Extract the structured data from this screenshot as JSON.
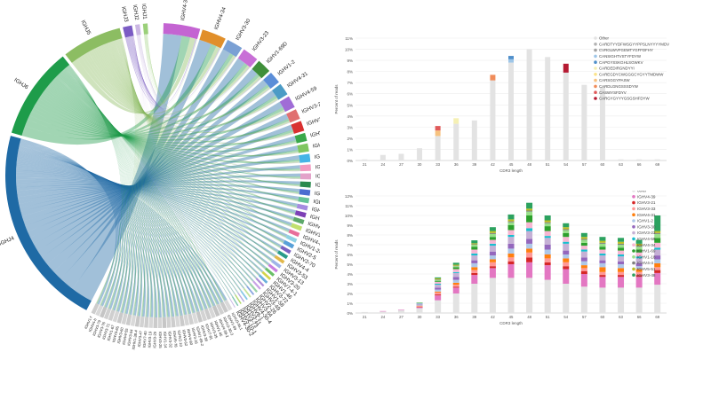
{
  "chord": {
    "j_genes": [
      {
        "name": "IGHJ4",
        "color": "#1f6aa5",
        "weight": 44
      },
      {
        "name": "IGHJ6",
        "color": "#1e9c4a",
        "weight": 20
      },
      {
        "name": "IGHJ5",
        "color": "#8cbd62",
        "weight": 13
      },
      {
        "name": "IGHJ3",
        "color": "#7b5cc4",
        "weight": 2
      },
      {
        "name": "IGHJ2",
        "color": "#cbb7e3",
        "weight": 1
      },
      {
        "name": "IGHJ1",
        "color": "#9bd07a",
        "weight": 1
      }
    ],
    "v_genes_major": [
      {
        "name": "IGHV4-39",
        "color": "#c464d2",
        "weight": 9
      },
      {
        "name": "IGHV4-34",
        "color": "#e18f2a",
        "weight": 6
      },
      {
        "name": "IGHV3-30",
        "color": "#7aa0d4",
        "weight": 4
      },
      {
        "name": "IGHV3-23",
        "color": "#c86fd6",
        "weight": 4
      },
      {
        "name": "IGHV1-69D",
        "color": "#3f8f3a",
        "weight": 3.5
      },
      {
        "name": "IGHV1-2",
        "color": "#5b8ed8",
        "weight": 3
      },
      {
        "name": "IGHV4-31",
        "color": "#4b9bc6",
        "weight": 3
      },
      {
        "name": "IGHV4-59",
        "color": "#a06cd6",
        "weight": 3
      },
      {
        "name": "IGHV3-21",
        "color": "#e07070",
        "weight": 2.5
      },
      {
        "name": "IGHV3-33",
        "color": "#d93030",
        "weight": 2.5
      },
      {
        "name": "IGHV3-48",
        "color": "#3aa84a",
        "weight": 2
      },
      {
        "name": "IGHV1-18",
        "color": "#7fc660",
        "weight": 2
      },
      {
        "name": "IGHV5-51",
        "color": "#45b4e6",
        "weight": 2
      },
      {
        "name": "IGHV3-7",
        "color": "#f29bc1",
        "weight": 1.6
      },
      {
        "name": "IGHV4-28",
        "color": "#e3a2c9",
        "weight": 1.5
      },
      {
        "name": "IGHV1-3",
        "color": "#2b8a4e",
        "weight": 1.4
      },
      {
        "name": "IGHV3-74",
        "color": "#4a6cd0",
        "weight": 1.4
      },
      {
        "name": "IGHV3-9",
        "color": "#66c299",
        "weight": 1.3
      },
      {
        "name": "IGHV3-15",
        "color": "#a58be0",
        "weight": 1.2
      },
      {
        "name": "IGHV1-8",
        "color": "#7d40b6",
        "weight": 1.2
      },
      {
        "name": "IGHV3-66",
        "color": "#5da86a",
        "weight": 1.1
      },
      {
        "name": "IGHV3-43",
        "color": "#c2e06e",
        "weight": 1.1
      },
      {
        "name": "IGHV4-61",
        "color": "#e86f9a",
        "weight": 1
      },
      {
        "name": "IGHV1-24",
        "color": "#8fd1e3",
        "weight": 1
      },
      {
        "name": "IGHV2-5",
        "color": "#58a0d8",
        "weight": 1
      },
      {
        "name": "IGHV2-70",
        "color": "#7b62c2",
        "weight": 0.9
      },
      {
        "name": "IGHV4-4",
        "color": "#2a9c8a",
        "weight": 0.9
      },
      {
        "name": "IGHV3-53",
        "color": "#e2b84b",
        "weight": 0.8
      },
      {
        "name": "IGHV3-13",
        "color": "#9fb4e8",
        "weight": 0.8
      },
      {
        "name": "IGHV3-20",
        "color": "#c97ee0",
        "weight": 0.7
      },
      {
        "name": "IGHV7-4-1",
        "color": "#6abf67",
        "weight": 0.7
      },
      {
        "name": "IGHV1-46",
        "color": "#d4d44a",
        "weight": 0.6
      },
      {
        "name": "IGHV3-72",
        "color": "#6ab0dd",
        "weight": 0.6
      },
      {
        "name": "IGHV1-58",
        "color": "#b08fd9",
        "weight": 0.5
      },
      {
        "name": "IGHV3-49",
        "color": "#c9a3e6",
        "weight": 0.5
      },
      {
        "name": "IGHV2-26",
        "color": "#9ad3a8",
        "weight": 0.5
      },
      {
        "name": "IGHV3-64",
        "color": "#8aa6e0",
        "weight": 0.4
      },
      {
        "name": "IGHV4-30-4",
        "color": "#c5e39a",
        "weight": 0.4
      },
      {
        "name": "IGHV6-1",
        "color": "#86c7e6",
        "weight": 0.4
      },
      {
        "name": "IGHV3-11",
        "color": "#b7a6e0",
        "weight": 0.3
      },
      {
        "name": "IGHV3-73",
        "color": "#b3d96c",
        "weight": 0.3
      },
      {
        "name": "IGHV5-10-1",
        "color": "#7ec4b0",
        "weight": 0.3
      },
      {
        "name": "IGHV4-30-2",
        "color": "#c6b4e4",
        "weight": 0.2
      }
    ],
    "v_genes_minor": [
      {
        "name": "IGHV3-NL1",
        "color": "#d9d9d9",
        "weight": 0.15
      },
      {
        "name": "IGHV1-69",
        "color": "#c9c9c9",
        "weight": 0.15
      },
      {
        "name": "IGHV3-30-3",
        "color": "#d0d0d0",
        "weight": 0.15
      },
      {
        "name": "IGHV4-38-2",
        "color": "#c4c4c4",
        "weight": 0.15
      },
      {
        "name": "IGHV1-45",
        "color": "#d6d6d6",
        "weight": 0.15
      },
      {
        "name": "IGHV3-35",
        "color": "#cccccc",
        "weight": 0.15
      },
      {
        "name": "IGHV7-81",
        "color": "#d3d3d3",
        "weight": 0.15
      },
      {
        "name": "IGHV3-38",
        "color": "#c7c7c7",
        "weight": 0.15
      },
      {
        "name": "IGHV1-69-2",
        "color": "#dadada",
        "weight": 0.15
      },
      {
        "name": "IGHV3-16",
        "color": "#cfcfcf",
        "weight": 0.15
      },
      {
        "name": "IGHV4-80",
        "color": "#d5d5d5",
        "weight": 0.15
      },
      {
        "name": "IGHV3-62",
        "color": "#cacaca",
        "weight": 0.15
      },
      {
        "name": "IGHV2-10",
        "color": "#d8d8d8",
        "weight": 0.15
      },
      {
        "name": "IGHV5-78",
        "color": "#cdcdcd",
        "weight": 0.15
      },
      {
        "name": "IGHV3-32",
        "color": "#d1d1d1",
        "weight": 0.15
      },
      {
        "name": "IGHV1-14",
        "color": "#c6c6c6",
        "weight": 0.15
      },
      {
        "name": "IGHV3-25",
        "color": "#d4d4d4",
        "weight": 0.15
      },
      {
        "name": "IGHV3-29",
        "color": "#cbcbcb",
        "weight": 0.15
      },
      {
        "name": "IGHV3-19",
        "color": "#d7d7d7",
        "weight": 0.15
      },
      {
        "name": "IGHV7-40",
        "color": "#cecece",
        "weight": 0.15
      },
      {
        "name": "IGHV3-47",
        "color": "#d2d2d2",
        "weight": 0.15
      },
      {
        "name": "IGHV1-38-4",
        "color": "#c8c8c8",
        "weight": 0.15
      },
      {
        "name": "IGHV3-54",
        "color": "#d9d9d9",
        "weight": 0.15
      },
      {
        "name": "IGHV4-55",
        "color": "#cccccc",
        "weight": 0.15
      },
      {
        "name": "IGHV3-60",
        "color": "#d3d3d3",
        "weight": 0.15
      },
      {
        "name": "IGHV3-65",
        "color": "#c9c9c9",
        "weight": 0.15
      },
      {
        "name": "IGHV1-67",
        "color": "#d6d6d6",
        "weight": 0.15
      },
      {
        "name": "IGHV3-71",
        "color": "#cfcfcf",
        "weight": 0.15
      },
      {
        "name": "IGHV3-76",
        "color": "#d0d0d0",
        "weight": 0.15
      },
      {
        "name": "IGHV3-79",
        "color": "#c5c5c5",
        "weight": 0.15
      },
      {
        "name": "IGHV4-b",
        "color": "#d8d8d8",
        "weight": 0.15
      },
      {
        "name": "IGHV1-f",
        "color": "#cdcdcd",
        "weight": 0.15
      }
    ]
  },
  "chart_data": [
    {
      "type": "bar",
      "stacked": true,
      "xlabel": "CDR3 length",
      "ylabel": "Percent of reads",
      "ylim": [
        0,
        11
      ],
      "yticks": [
        0,
        1,
        2,
        3,
        4,
        5,
        6,
        7,
        8,
        9,
        10,
        11
      ],
      "categories": [
        21,
        24,
        27,
        30,
        33,
        36,
        39,
        42,
        45,
        48,
        51,
        54,
        57,
        60,
        63,
        66,
        69
      ],
      "legend_position": "top-right",
      "series": [
        {
          "name": "Other",
          "color": "#e3e3e3",
          "values": [
            0.1,
            0.5,
            0.6,
            1.1,
            2.2,
            3.3,
            3.6,
            7.2,
            8.8,
            10.0,
            9.3,
            7.9,
            6.8,
            6.6,
            0.1,
            0.1,
            0.1
          ]
        },
        {
          "name": "CARDTYYDFWSGYYPPSLNYYYYMDV",
          "color": "#b3b3b3",
          "values": [
            0,
            0,
            0,
            0,
            0,
            0,
            0,
            0,
            0,
            0,
            0,
            0,
            0,
            0,
            0,
            0,
            0
          ]
        },
        {
          "name": "CVRGLWVFGEMTYGFFDFHY",
          "color": "#a3a3a3",
          "values": [
            0,
            0,
            0,
            0,
            0,
            0,
            0,
            0,
            0,
            0,
            0,
            0,
            0,
            0,
            0,
            0,
            0
          ]
        },
        {
          "name": "CANSIGHTVSTYFDYW",
          "color": "#9ec6e8",
          "values": [
            0,
            0,
            0,
            0,
            0,
            0,
            0,
            0,
            0.3,
            0,
            0,
            0,
            0,
            0,
            0,
            0,
            0
          ]
        },
        {
          "name": "CAPGYSSKGHLSGWKV",
          "color": "#4f8fca",
          "values": [
            0,
            0,
            0,
            0,
            0,
            0,
            0,
            0,
            0.3,
            0,
            0,
            0,
            0,
            0,
            0,
            0,
            0
          ]
        },
        {
          "name": "CARDEDIRGNDYYI",
          "color": "#f5f0b4",
          "values": [
            0,
            0,
            0,
            0,
            0,
            0.5,
            0,
            0,
            0,
            0,
            0,
            0,
            0,
            0,
            0,
            0,
            0
          ]
        },
        {
          "name": "CAREGDYCWGGGCYGYYTMDWW",
          "color": "#fbe38a",
          "values": [
            0,
            0,
            0,
            0,
            0,
            0,
            0,
            0,
            0,
            0,
            0,
            0,
            0,
            0,
            0,
            0,
            0
          ]
        },
        {
          "name": "CARSGGYPASW",
          "color": "#f6c27f",
          "values": [
            0,
            0,
            0,
            0,
            0.5,
            0,
            0,
            0,
            0,
            0,
            0,
            0,
            0,
            0,
            0,
            0,
            0
          ]
        },
        {
          "name": "CARDLGNGSSSDYW",
          "color": "#f08c5a",
          "values": [
            0,
            0,
            0,
            0,
            0,
            0,
            0,
            0.5,
            0,
            0,
            0,
            0,
            0,
            0,
            0,
            0,
            0
          ]
        },
        {
          "name": "CASWYSFDYV",
          "color": "#e05a5a",
          "values": [
            0,
            0,
            0,
            0,
            0.4,
            0,
            0,
            0,
            0,
            0,
            0,
            0,
            0,
            0,
            0,
            0,
            0
          ]
        },
        {
          "name": "CARGYGYYYGSGSHFDYW",
          "color": "#b51a32",
          "values": [
            0,
            0,
            0,
            0,
            0,
            0,
            0,
            0,
            0,
            0,
            0,
            0.8,
            0,
            0,
            0,
            0,
            0
          ]
        }
      ]
    },
    {
      "type": "bar",
      "stacked": true,
      "xlabel": "CDR3 length",
      "ylabel": "Percent of reads",
      "ylim": [
        0,
        12
      ],
      "yticks": [
        0,
        1,
        2,
        3,
        4,
        5,
        6,
        7,
        8,
        9,
        10,
        11,
        12
      ],
      "categories": [
        21,
        24,
        27,
        30,
        33,
        36,
        39,
        42,
        45,
        48,
        51,
        54,
        57,
        60,
        63,
        66,
        69
      ],
      "legend_position": "top-right",
      "series": [
        {
          "name": "other",
          "color": "#e3e3e3",
          "values": [
            0.1,
            0.15,
            0.3,
            0.5,
            1.3,
            2.0,
            3.0,
            3.6,
            3.6,
            3.6,
            3.4,
            3.0,
            2.7,
            2.6,
            2.6,
            2.6,
            2.9
          ]
        },
        {
          "name": "IGHV4-39",
          "color": "#e377c2",
          "values": [
            0,
            0.05,
            0.05,
            0.1,
            0.5,
            0.6,
            0.9,
            1.0,
            1.4,
            1.6,
            1.5,
            1.5,
            1.3,
            1.1,
            1.1,
            1.1,
            1.2
          ]
        },
        {
          "name": "IGHV3-21",
          "color": "#d62728",
          "values": [
            0,
            0,
            0,
            0.05,
            0.1,
            0.1,
            0.2,
            0.2,
            0.3,
            0.5,
            0.3,
            0.3,
            0.3,
            0.2,
            0.2,
            0.2,
            0.3
          ]
        },
        {
          "name": "IGHV3-33",
          "color": "#ff9896",
          "values": [
            0,
            0,
            0,
            0.05,
            0.2,
            0.2,
            0.3,
            0.4,
            0.4,
            0.5,
            0.4,
            0.4,
            0.3,
            0.3,
            0.3,
            0.3,
            0.3
          ]
        },
        {
          "name": "IGHV4-31",
          "color": "#ff7f0e",
          "values": [
            0,
            0,
            0,
            0.05,
            0.1,
            0.2,
            0.3,
            0.3,
            0.4,
            0.4,
            0.4,
            0.4,
            0.3,
            0.5,
            0.4,
            0.3,
            0.4
          ]
        },
        {
          "name": "IGHV1-2",
          "color": "#aec7e8",
          "values": [
            0,
            0,
            0,
            0.05,
            0.2,
            0.3,
            0.4,
            0.4,
            0.5,
            0.5,
            0.5,
            0.4,
            0.4,
            0.4,
            0.4,
            0.3,
            0.4
          ]
        },
        {
          "name": "IGHV3-30",
          "color": "#9467bd",
          "values": [
            0,
            0,
            0,
            0.05,
            0.2,
            0.3,
            0.3,
            0.4,
            0.5,
            0.5,
            0.5,
            0.4,
            0.4,
            0.3,
            0.3,
            0.3,
            0.4
          ]
        },
        {
          "name": "IGHV3-23",
          "color": "#c5b0d5",
          "values": [
            0,
            0,
            0,
            0.05,
            0.3,
            0.4,
            0.5,
            0.6,
            0.7,
            0.8,
            0.7,
            0.7,
            0.6,
            0.5,
            0.5,
            0.5,
            0.6
          ]
        },
        {
          "name": "IGHV4-59",
          "color": "#17becf",
          "values": [
            0,
            0,
            0,
            0.05,
            0.1,
            0.1,
            0.2,
            0.2,
            0.2,
            0.3,
            0.2,
            0.2,
            0.2,
            0.2,
            0.2,
            0.2,
            0.2
          ]
        },
        {
          "name": "IGHV4-34",
          "color": "#f7b6d2",
          "values": [
            0,
            0,
            0,
            0.05,
            0.2,
            0.3,
            0.4,
            0.4,
            0.5,
            0.6,
            0.5,
            0.5,
            0.4,
            0.4,
            0.4,
            0.4,
            0.5
          ]
        },
        {
          "name": "IGHV1-69",
          "color": "#2ca02c",
          "values": [
            0,
            0,
            0,
            0.05,
            0.1,
            0.2,
            0.3,
            0.3,
            0.5,
            0.7,
            0.5,
            0.4,
            0.3,
            0.3,
            0.3,
            0.3,
            0.5
          ]
        },
        {
          "name": "IGHV1-18",
          "color": "#98df8a",
          "values": [
            0,
            0,
            0,
            0,
            0.1,
            0.1,
            0.2,
            0.3,
            0.3,
            0.4,
            0.3,
            0.3,
            0.3,
            0.3,
            0.3,
            0.3,
            0.4
          ]
        },
        {
          "name": "IGHV4-4",
          "color": "#7f7f7f",
          "values": [
            0,
            0,
            0,
            0,
            0.05,
            0.05,
            0.05,
            0.1,
            0.1,
            0.1,
            0.1,
            0.1,
            0.1,
            0.1,
            0.1,
            0.1,
            0.1
          ]
        },
        {
          "name": "IGHV5-51",
          "color": "#bcbd22",
          "values": [
            0,
            0,
            0,
            0,
            0.1,
            0.1,
            0.1,
            0.2,
            0.2,
            0.2,
            0.2,
            0.2,
            0.2,
            0.2,
            0.2,
            0.2,
            0.2
          ]
        },
        {
          "name": "IGHV3-48",
          "color": "#2ca25f",
          "values": [
            0,
            0,
            0,
            0,
            0.1,
            0.2,
            0.3,
            0.4,
            0.5,
            0.6,
            0.5,
            0.4,
            0.4,
            0.4,
            0.4,
            0.4,
            1.6
          ]
        }
      ]
    }
  ]
}
